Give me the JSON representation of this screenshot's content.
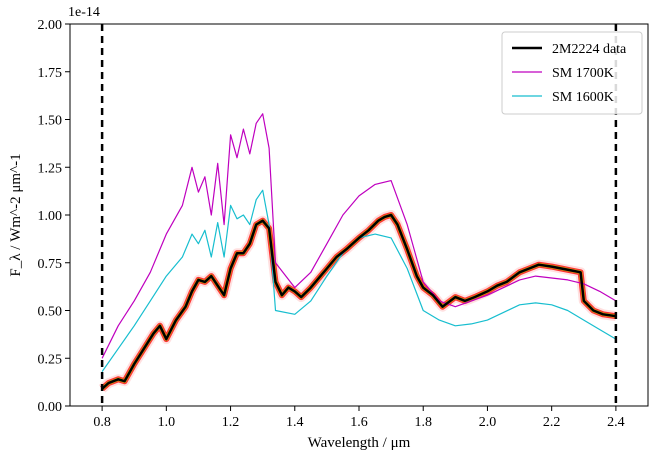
{
  "chart_data": {
    "type": "line",
    "title": "",
    "xlabel": "Wavelength / μm",
    "ylabel": "F_λ / Wm^-2 μm^-1",
    "y_offset_label": "1e-14",
    "xlim": [
      0.7,
      2.5
    ],
    "ylim": [
      0.0,
      2.0
    ],
    "x_ticks": [
      0.8,
      1.0,
      1.2,
      1.4,
      1.6,
      1.8,
      2.0,
      2.2,
      2.4
    ],
    "y_ticks": [
      0.0,
      0.25,
      0.5,
      0.75,
      1.0,
      1.25,
      1.5,
      1.75,
      2.0
    ],
    "x_tick_labels": [
      "0.8",
      "1.0",
      "1.2",
      "1.4",
      "1.6",
      "1.8",
      "2.0",
      "2.2",
      "2.4"
    ],
    "y_tick_labels": [
      "0.00",
      "0.25",
      "0.50",
      "0.75",
      "1.00",
      "1.25",
      "1.50",
      "1.75",
      "2.00"
    ],
    "vlines": [
      0.8,
      2.4
    ],
    "grid": false,
    "legend_position": "top-right",
    "series": [
      {
        "name": "SM 1700K",
        "color": "#bf00bf",
        "x": [
          0.8,
          0.85,
          0.9,
          0.95,
          1.0,
          1.05,
          1.08,
          1.1,
          1.12,
          1.14,
          1.16,
          1.18,
          1.2,
          1.22,
          1.24,
          1.26,
          1.28,
          1.3,
          1.32,
          1.34,
          1.4,
          1.45,
          1.5,
          1.55,
          1.6,
          1.65,
          1.7,
          1.75,
          1.8,
          1.85,
          1.9,
          1.95,
          2.0,
          2.05,
          2.1,
          2.15,
          2.2,
          2.25,
          2.3,
          2.35,
          2.4
        ],
        "y": [
          0.25,
          0.42,
          0.55,
          0.7,
          0.9,
          1.05,
          1.25,
          1.12,
          1.2,
          1.0,
          1.27,
          0.95,
          1.42,
          1.3,
          1.45,
          1.32,
          1.48,
          1.53,
          1.35,
          0.75,
          0.62,
          0.7,
          0.85,
          1.0,
          1.1,
          1.16,
          1.18,
          0.95,
          0.65,
          0.55,
          0.52,
          0.55,
          0.58,
          0.62,
          0.66,
          0.68,
          0.67,
          0.66,
          0.64,
          0.6,
          0.55
        ]
      },
      {
        "name": "SM 1600K",
        "color": "#17becf",
        "x": [
          0.8,
          0.85,
          0.9,
          0.95,
          1.0,
          1.05,
          1.08,
          1.1,
          1.12,
          1.14,
          1.16,
          1.18,
          1.2,
          1.22,
          1.24,
          1.26,
          1.28,
          1.3,
          1.32,
          1.34,
          1.4,
          1.45,
          1.5,
          1.55,
          1.6,
          1.65,
          1.7,
          1.75,
          1.8,
          1.85,
          1.9,
          1.95,
          2.0,
          2.05,
          2.1,
          2.15,
          2.2,
          2.25,
          2.3,
          2.35,
          2.4
        ],
        "y": [
          0.18,
          0.3,
          0.42,
          0.55,
          0.68,
          0.78,
          0.9,
          0.85,
          0.92,
          0.78,
          0.96,
          0.78,
          1.05,
          0.98,
          1.0,
          0.95,
          1.08,
          1.13,
          0.95,
          0.5,
          0.48,
          0.55,
          0.68,
          0.8,
          0.88,
          0.9,
          0.88,
          0.72,
          0.5,
          0.45,
          0.42,
          0.43,
          0.45,
          0.49,
          0.53,
          0.54,
          0.53,
          0.5,
          0.45,
          0.4,
          0.35
        ]
      },
      {
        "name": "2M2224 data",
        "color": "#000000",
        "x": [
          0.8,
          0.82,
          0.85,
          0.87,
          0.9,
          0.93,
          0.96,
          0.98,
          1.0,
          1.03,
          1.06,
          1.08,
          1.1,
          1.12,
          1.14,
          1.16,
          1.18,
          1.2,
          1.22,
          1.24,
          1.26,
          1.28,
          1.3,
          1.32,
          1.34,
          1.36,
          1.38,
          1.4,
          1.42,
          1.45,
          1.48,
          1.5,
          1.53,
          1.56,
          1.6,
          1.63,
          1.66,
          1.68,
          1.7,
          1.72,
          1.75,
          1.78,
          1.8,
          1.83,
          1.86,
          1.9,
          1.93,
          1.96,
          2.0,
          2.03,
          2.06,
          2.1,
          2.13,
          2.16,
          2.2,
          2.23,
          2.26,
          2.29,
          2.3,
          2.33,
          2.36,
          2.4
        ],
        "y": [
          0.09,
          0.12,
          0.14,
          0.13,
          0.22,
          0.3,
          0.38,
          0.42,
          0.35,
          0.45,
          0.52,
          0.6,
          0.66,
          0.65,
          0.68,
          0.63,
          0.58,
          0.72,
          0.8,
          0.8,
          0.85,
          0.95,
          0.97,
          0.93,
          0.65,
          0.58,
          0.62,
          0.6,
          0.57,
          0.62,
          0.68,
          0.72,
          0.78,
          0.82,
          0.88,
          0.92,
          0.97,
          0.99,
          1.0,
          0.95,
          0.82,
          0.68,
          0.62,
          0.58,
          0.52,
          0.57,
          0.55,
          0.57,
          0.6,
          0.63,
          0.65,
          0.7,
          0.72,
          0.74,
          0.73,
          0.72,
          0.71,
          0.7,
          0.55,
          0.5,
          0.48,
          0.47
        ]
      }
    ]
  }
}
